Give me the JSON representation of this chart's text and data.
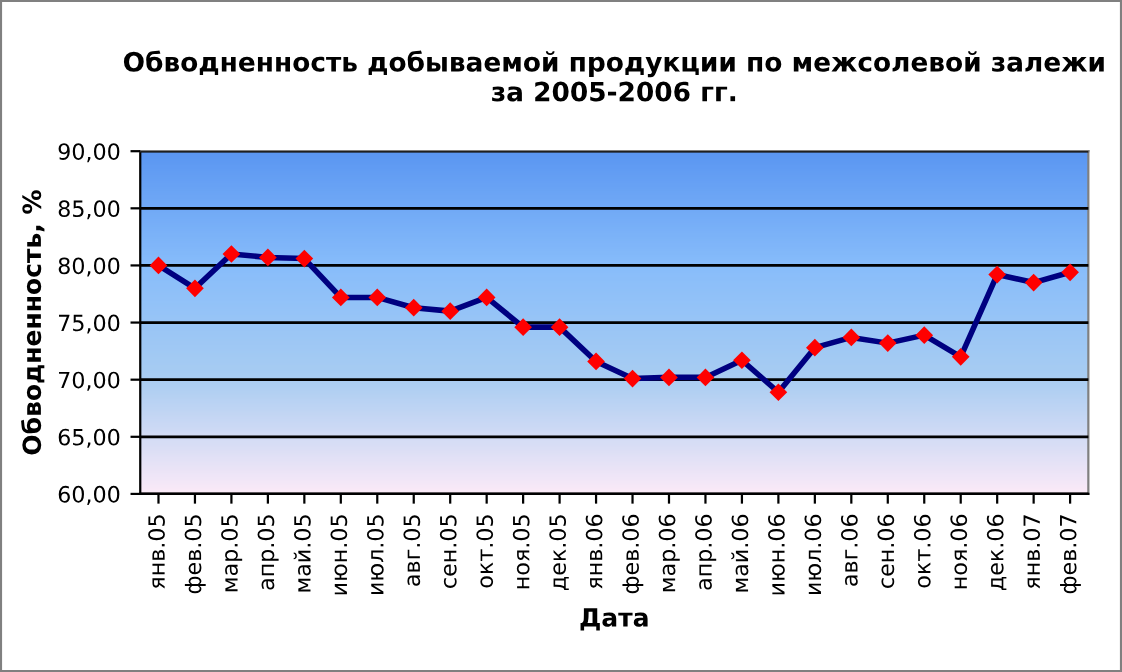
{
  "chart_data": {
    "type": "line",
    "title": "Обводненность добываемой продукции по межсолевой залежи\nза 2005-2006 гг.",
    "xlabel": "Дата",
    "ylabel": "Обводненность, %",
    "categories": [
      "янв.05",
      "фев.05",
      "мар.05",
      "апр.05",
      "май.05",
      "июн.05",
      "июл.05",
      "авг.05",
      "сен.05",
      "окт.05",
      "ноя.05",
      "дек.05",
      "янв.06",
      "фев.06",
      "мар.06",
      "апр.06",
      "май.06",
      "июн.06",
      "июл.06",
      "авг.06",
      "сен.06",
      "окт.06",
      "ноя.06",
      "дек.06",
      "янв.07",
      "фев.07"
    ],
    "series": [
      {
        "color": "#000080",
        "values": [
          80.0,
          78.0,
          81.0,
          80.7,
          80.6,
          77.2,
          77.2,
          76.3,
          76.0,
          77.2,
          74.6,
          74.6,
          71.6,
          70.1,
          70.2,
          70.2,
          71.7,
          68.9,
          72.8,
          73.7,
          73.2,
          73.9,
          72.0,
          79.2,
          78.5,
          79.4
        ]
      }
    ],
    "ylim": [
      60,
      90
    ],
    "yticks": [
      {
        "value": 60,
        "label": "60,00"
      },
      {
        "value": 65,
        "label": "65,00"
      },
      {
        "value": 70,
        "label": "70,00"
      },
      {
        "value": 75,
        "label": "75,00"
      },
      {
        "value": 80,
        "label": "80,00"
      },
      {
        "value": 85,
        "label": "85,00"
      },
      {
        "value": 90,
        "label": "90,00"
      }
    ],
    "grid": "y",
    "marker": "diamond",
    "line_style": "solid"
  }
}
